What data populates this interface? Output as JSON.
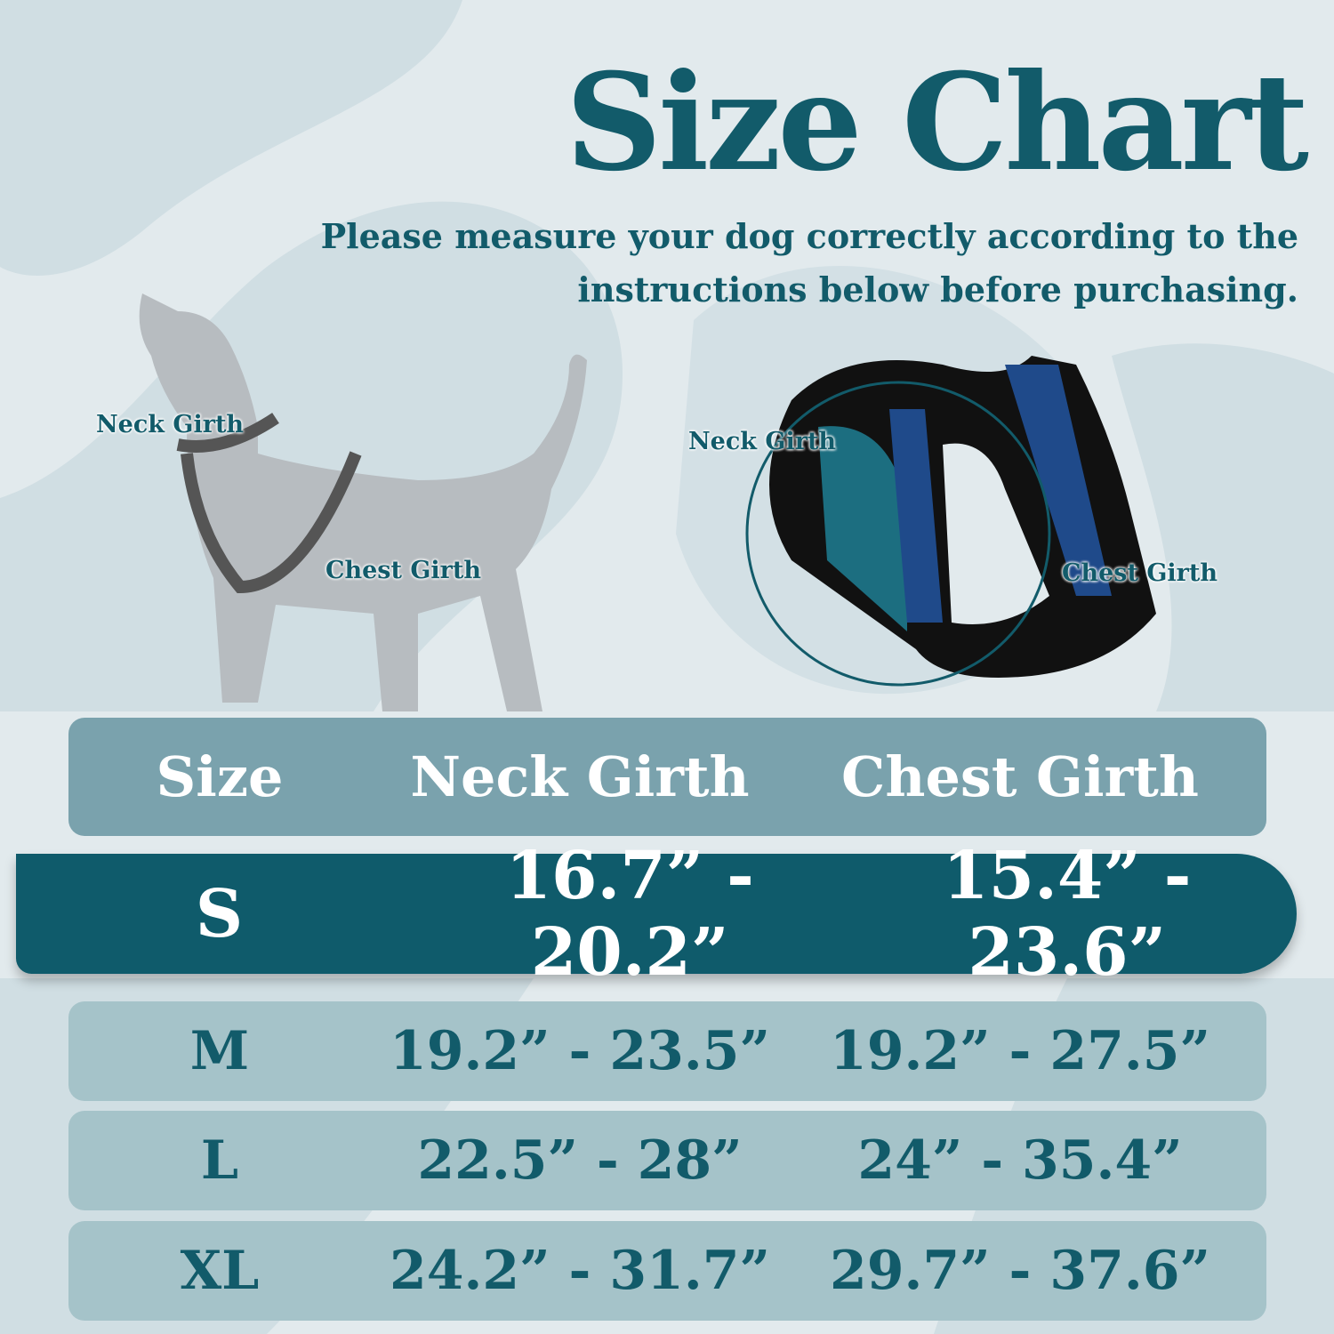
{
  "title": "Size Chart",
  "subtitle": "Please measure your dog correctly according to the instructions below before purchasing.",
  "dog_labels": {
    "neck": "Neck Girth",
    "chest": "Chest Girth"
  },
  "harness_labels": {
    "neck": "Neck Girth",
    "chest": "Chest Girth"
  },
  "colors": {
    "primary": "#0f5b6b",
    "header_row": "#7aa2ad",
    "row": "#a5c3c9",
    "background": "#e2eaed"
  },
  "table": {
    "headers": [
      "Size",
      "Neck Girth",
      "Chest Girth"
    ],
    "rows": [
      {
        "size": "S",
        "neck": "16.7” - 20.2”",
        "chest": "15.4” - 23.6”",
        "highlighted": true
      },
      {
        "size": "M",
        "neck": "19.2” - 23.5”",
        "chest": "19.2” - 27.5”"
      },
      {
        "size": "L",
        "neck": "22.5” - 28”",
        "chest": "24” - 35.4”"
      },
      {
        "size": "XL",
        "neck": "24.2” - 31.7”",
        "chest": "29.7” - 37.6”"
      }
    ]
  }
}
